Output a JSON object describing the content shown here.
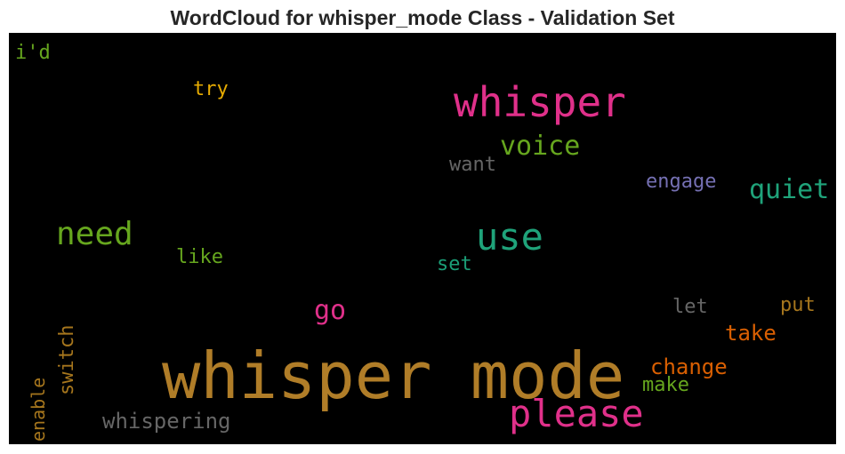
{
  "chart_data": {
    "type": "wordcloud",
    "title": "WordCloud for whisper_mode Class - Validation Set",
    "background": "#000000",
    "words": [
      {
        "text": "whisper mode",
        "color": "#b07d28",
        "orientation": "horizontal"
      },
      {
        "text": "whisper",
        "color": "#e0308a",
        "orientation": "horizontal"
      },
      {
        "text": "please",
        "color": "#e0308a",
        "orientation": "horizontal"
      },
      {
        "text": "use",
        "color": "#1fa37a",
        "orientation": "horizontal"
      },
      {
        "text": "need",
        "color": "#66a61e",
        "orientation": "horizontal"
      },
      {
        "text": "quiet",
        "color": "#1fa37a",
        "orientation": "horizontal"
      },
      {
        "text": "voice",
        "color": "#66a61e",
        "orientation": "horizontal"
      },
      {
        "text": "go",
        "color": "#e0308a",
        "orientation": "horizontal"
      },
      {
        "text": "whispering",
        "color": "#666666",
        "orientation": "horizontal"
      },
      {
        "text": "change",
        "color": "#d95f02",
        "orientation": "horizontal"
      },
      {
        "text": "switch",
        "color": "#a6761d",
        "orientation": "vertical"
      },
      {
        "text": "take",
        "color": "#d95f02",
        "orientation": "horizontal"
      },
      {
        "text": "engage",
        "color": "#7570b3",
        "orientation": "horizontal"
      },
      {
        "text": "want",
        "color": "#666666",
        "orientation": "horizontal"
      },
      {
        "text": "make",
        "color": "#66a61e",
        "orientation": "horizontal"
      },
      {
        "text": "put",
        "color": "#a6761d",
        "orientation": "horizontal"
      },
      {
        "text": "enable",
        "color": "#a6761d",
        "orientation": "vertical"
      },
      {
        "text": "like",
        "color": "#66a61e",
        "orientation": "horizontal"
      },
      {
        "text": "set",
        "color": "#1b9e77",
        "orientation": "horizontal"
      },
      {
        "text": "let",
        "color": "#666666",
        "orientation": "horizontal"
      },
      {
        "text": "try",
        "color": "#e6ab02",
        "orientation": "horizontal"
      },
      {
        "text": "i'd",
        "color": "#66a61e",
        "orientation": "horizontal"
      }
    ]
  }
}
